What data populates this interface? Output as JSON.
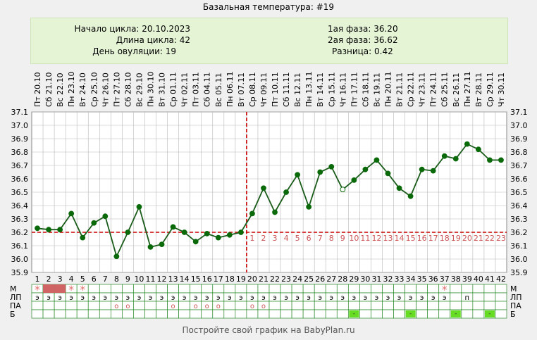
{
  "title": "Базальная температура: #19",
  "info": {
    "cycle_start": "Начало цикла: 20.10.2023",
    "cycle_length": "Длина цикла: 42",
    "ovulation_day": "День овуляции: 19",
    "phase1": "1ая фаза: 36.20",
    "phase2": "2ая фаза: 36.62",
    "difference": "Разница: 0.42"
  },
  "footer": "Постройте свой график на BabyPlan.ru",
  "colors": {
    "line": "#1a5c1a",
    "marker": "#0a6a0a",
    "coverline": "#cc0000",
    "grid": "#b8b8b8",
    "menses": "#d06464",
    "star": "#e07070",
    "highlight": "#66dd22"
  },
  "chart_data": {
    "type": "line",
    "x_days": [
      1,
      2,
      3,
      4,
      5,
      6,
      7,
      8,
      9,
      10,
      11,
      12,
      13,
      14,
      15,
      16,
      17,
      18,
      19,
      20,
      21,
      22,
      23,
      24,
      25,
      26,
      27,
      28,
      29,
      30,
      31,
      32,
      33,
      34,
      35,
      36,
      37,
      38,
      39,
      40,
      41,
      42
    ],
    "dates": [
      "Пт 20.10",
      "Сб 21.10",
      "Вс 22.10",
      "Пн 23.10",
      "Вт 24.10",
      "Ср 25.10",
      "Чт 26.10",
      "Пт 27.10",
      "Сб 28.10",
      "Вс 29.10",
      "Пн 30.10",
      "Вт 31.10",
      "Ср 01.11",
      "Чт 02.11",
      "Пт 03.11",
      "Сб 04.11",
      "Вс 05.11",
      "Пн 06.11",
      "Вт 07.11",
      "Ср 08.11",
      "Чт 09.11",
      "Пт 10.11",
      "Сб 11.11",
      "Вс 12.11",
      "Пн 13.11",
      "Вт 14.11",
      "Ср 15.11",
      "Чт 16.11",
      "Пт 17.11",
      "Сб 18.11",
      "Вс 19.11",
      "Пн 20.11",
      "Вт 21.11",
      "Ср 22.11",
      "Чт 23.11",
      "Пт 24.11",
      "Сб 25.11",
      "Вс 26.11",
      "Пн 27.11",
      "Вт 28.11",
      "Ср 29.11",
      "Чт 30.11"
    ],
    "temperatures": [
      36.23,
      36.22,
      36.22,
      36.34,
      36.16,
      36.27,
      36.32,
      36.02,
      36.2,
      36.39,
      36.09,
      36.11,
      36.24,
      36.2,
      36.13,
      36.19,
      36.16,
      36.18,
      36.2,
      36.34,
      36.53,
      36.35,
      36.5,
      36.63,
      36.39,
      36.65,
      36.69,
      36.52,
      36.59,
      36.67,
      36.74,
      36.64,
      36.53,
      36.47,
      36.67,
      36.66,
      36.77,
      36.75,
      36.86,
      36.82,
      36.74,
      36.74
    ],
    "open_markers_days": [
      28
    ],
    "y_ticks": [
      "35.9",
      "36.0",
      "36.1",
      "36.2",
      "36.3",
      "36.4",
      "36.5",
      "36.6",
      "36.7",
      "36.8",
      "36.9",
      "37.0",
      "37.1"
    ],
    "ylim": [
      35.9,
      37.1
    ],
    "coverline": 36.2,
    "ovulation_day": 19,
    "luteal_labels": [
      "1",
      "2",
      "3",
      "4",
      "5",
      "6",
      "7",
      "8",
      "9",
      "10",
      "11",
      "12",
      "13",
      "14",
      "15",
      "16",
      "17",
      "18",
      "19",
      "20",
      "21",
      "22",
      "23"
    ],
    "rows": {
      "labels": [
        "М",
        "ЛП",
        "ПА",
        "Б"
      ],
      "menses_stars": [
        1,
        4,
        5,
        37
      ],
      "menses_fill": [
        2,
        3
      ],
      "lp": [
        "э",
        "э",
        "э",
        "э",
        "э",
        "э",
        "э",
        "э",
        "э",
        "э",
        "э",
        "э",
        "э",
        "э",
        "э",
        "э",
        "э",
        "э",
        "э",
        "э",
        "э",
        "э",
        "э",
        "э",
        "э",
        "э",
        "э",
        "э",
        "э",
        "э",
        "э",
        "э",
        "э",
        "э",
        "э",
        "э",
        "э",
        "",
        "п",
        "",
        "",
        ""
      ],
      "pa_days": [
        8,
        9,
        13,
        15,
        16,
        17,
        20,
        21
      ],
      "pa_symbol": "о",
      "b_days": [
        29,
        34,
        38,
        41
      ],
      "b_symbol": "-"
    }
  }
}
